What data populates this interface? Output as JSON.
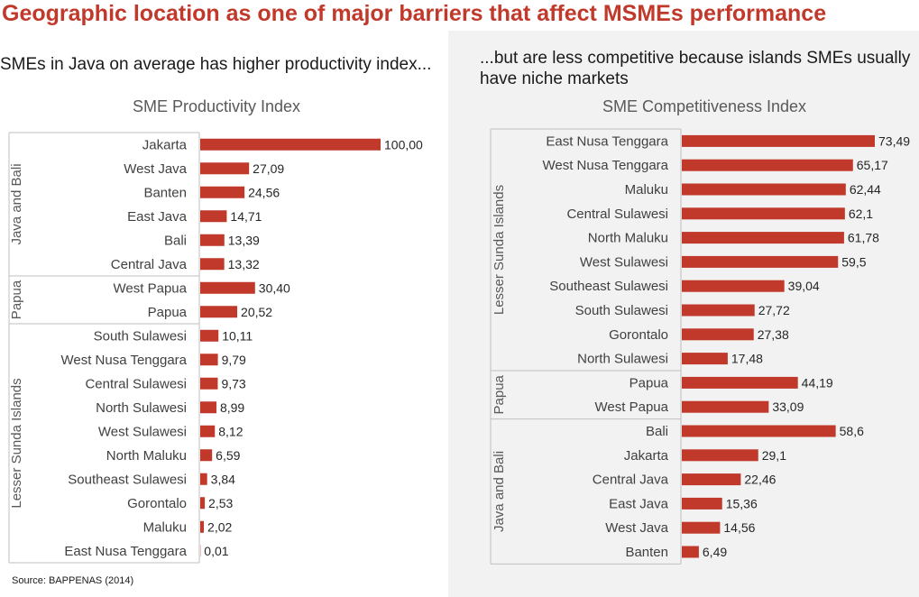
{
  "title": "Geographic location as one of major barriers that affect MSMEs performance",
  "left_subtitle": "SMEs in Java on average has higher productivity index...",
  "right_subtitle": "...but are less competitive because islands SMEs usually have niche markets",
  "source": "Source: BAPPENAS (2014)",
  "colors": {
    "bar": "#c0392b",
    "title": "#c0392b",
    "panel": "#f2f2f2"
  },
  "chart_data": [
    {
      "type": "bar",
      "orientation": "horizontal",
      "title": "SME Productivity Index",
      "categories": [
        "Jakarta",
        "West Java",
        "Banten",
        "East Java",
        "Bali",
        "Central Java",
        "West Papua",
        "Papua",
        "South Sulawesi",
        "West Nusa Tenggara",
        "Central Sulawesi",
        "North Sulawesi",
        "West Sulawesi",
        "North Maluku",
        "Southeast Sulawesi",
        "Gorontalo",
        "Maluku",
        "East Nusa Tenggara"
      ],
      "values": [
        100.0,
        27.09,
        24.56,
        14.71,
        13.39,
        13.32,
        30.4,
        20.52,
        10.11,
        9.79,
        9.73,
        8.99,
        8.12,
        6.59,
        3.84,
        2.53,
        2.02,
        0.01
      ],
      "value_labels": [
        "100,00",
        "27,09",
        "24,56",
        "14,71",
        "13,39",
        "13,32",
        "30,40",
        "20,52",
        "10,11",
        "9,79",
        "9,73",
        "8,99",
        "8,12",
        "6,59",
        "3,84",
        "2,53",
        "2,02",
        "0,01"
      ],
      "groups": [
        {
          "name": "Java and Bali",
          "count": 6
        },
        {
          "name": "Papua",
          "count": 2
        },
        {
          "name": "Lesser Sunda Islands",
          "count": 10
        }
      ],
      "xlim": [
        0,
        100
      ]
    },
    {
      "type": "bar",
      "orientation": "horizontal",
      "title": "SME Competitiveness Index",
      "categories": [
        "East Nusa Tenggara",
        "West Nusa Tenggara",
        "Maluku",
        "Central Sulawesi",
        "North Maluku",
        "West Sulawesi",
        "Southeast Sulawesi",
        "South Sulawesi",
        "Gorontalo",
        "North Sulawesi",
        "Papua",
        "West Papua",
        "Bali",
        "Jakarta",
        "Central Java",
        "East Java",
        "West Java",
        "Banten"
      ],
      "values": [
        73.49,
        65.17,
        62.44,
        62.1,
        61.78,
        59.5,
        39.04,
        27.72,
        27.38,
        17.48,
        44.19,
        33.09,
        58.6,
        29.1,
        22.46,
        15.36,
        14.56,
        6.49
      ],
      "value_labels": [
        "73,49",
        "65,17",
        "62,44",
        "62,1",
        "61,78",
        "59,5",
        "39,04",
        "27,72",
        "27,38",
        "17,48",
        "44,19",
        "33,09",
        "58,6",
        "29,1",
        "22,46",
        "15,36",
        "14,56",
        "6,49"
      ],
      "groups": [
        {
          "name": "Lesser Sunda Islands",
          "count": 10
        },
        {
          "name": "Papua",
          "count": 2
        },
        {
          "name": "Java and Bali",
          "count": 6
        }
      ],
      "xlim": [
        0,
        73.49
      ]
    }
  ]
}
